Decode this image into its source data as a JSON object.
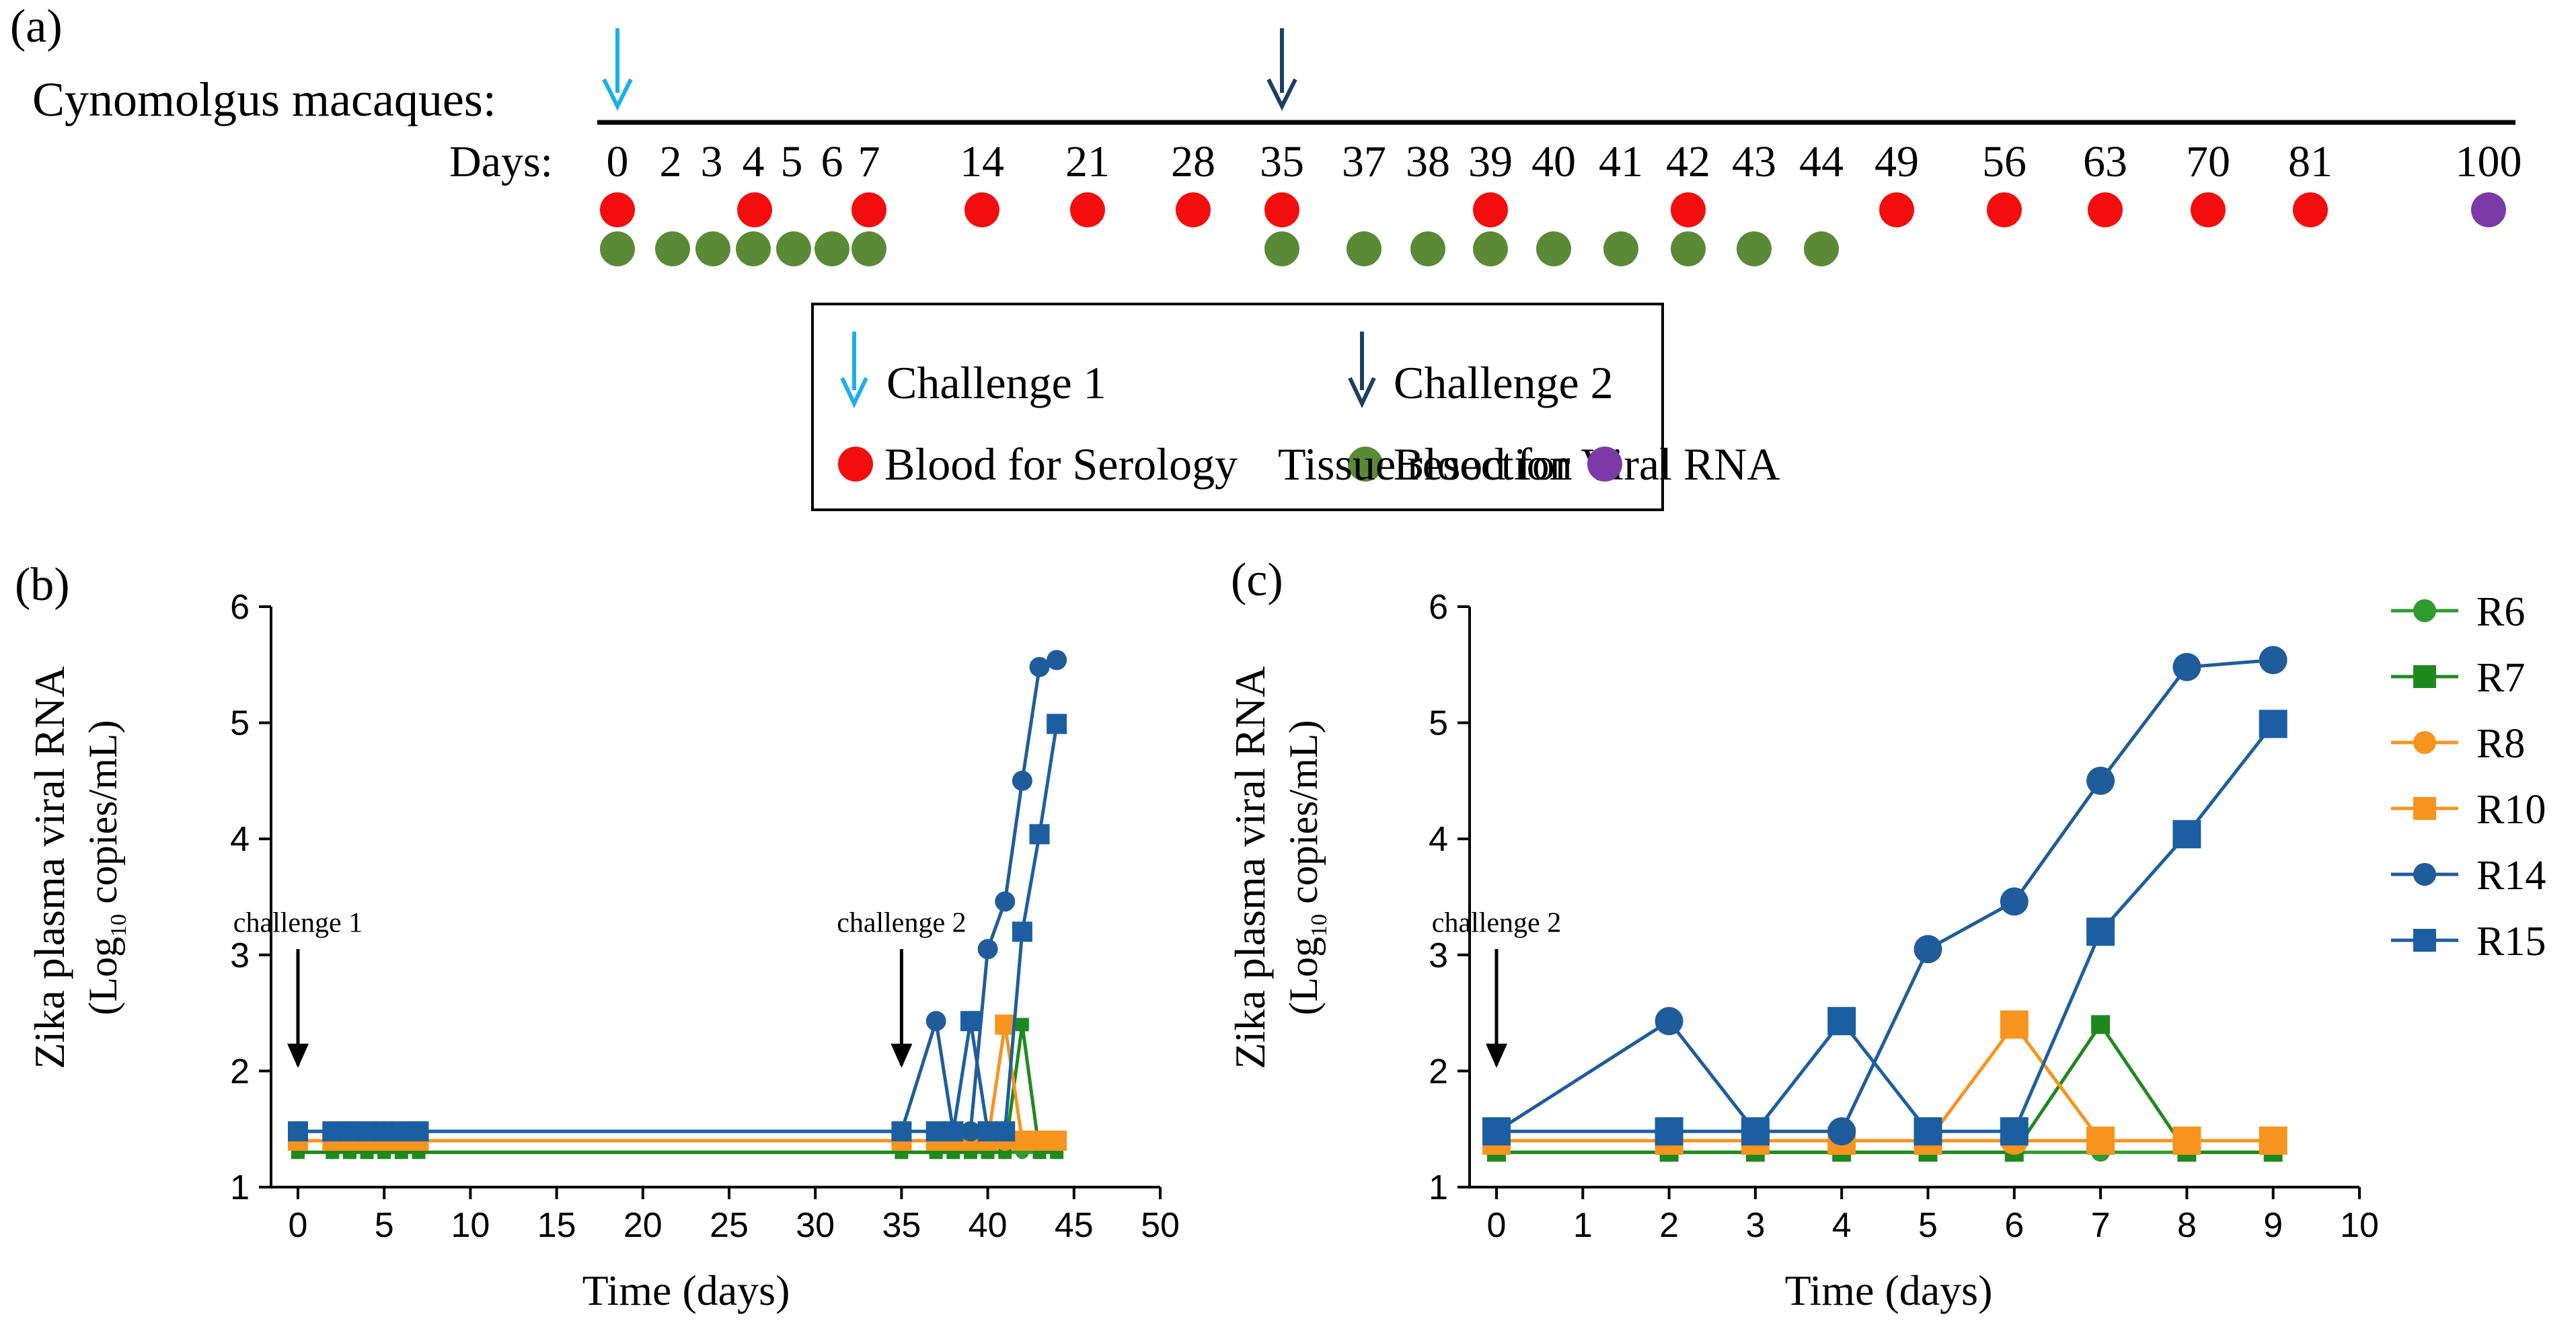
{
  "panel_labels": {
    "a": "(a)",
    "b": "(b)",
    "c": "(c)"
  },
  "timeline": {
    "subject_label": "Cynomolgus macaques:",
    "days_label": "Days:",
    "days": [
      "0",
      "2",
      "3",
      "4",
      "5",
      "6",
      "7",
      "14",
      "21",
      "28",
      "35",
      "37",
      "38",
      "39",
      "40",
      "41",
      "42",
      "43",
      "44",
      "49",
      "56",
      "63",
      "70",
      "81",
      "100"
    ],
    "challenge_days": [
      {
        "day": "0",
        "challenge": "Challenge 1"
      },
      {
        "day": "35",
        "challenge": "Challenge 2"
      }
    ],
    "serology_days": [
      "0",
      "4",
      "7",
      "14",
      "21",
      "28",
      "35",
      "39",
      "42",
      "49",
      "56",
      "63",
      "70",
      "81"
    ],
    "viral_rna_days": [
      "0",
      "2",
      "3",
      "4",
      "5",
      "6",
      "7",
      "35",
      "37",
      "38",
      "39",
      "40",
      "41",
      "42",
      "43",
      "44"
    ],
    "tissue_days": [
      "100"
    ]
  },
  "legend_box": {
    "challenge1": "Challenge 1",
    "challenge2": "Challenge 2",
    "serology": "Blood for Serology",
    "viral_rna": "Blood for Viral RNA",
    "tissue": "Tissue resection"
  },
  "colors": {
    "challenge1": "#1ab0ea",
    "challenge2": "#1d3f66",
    "serology": "#f40d0d",
    "viral_rna": "#5b8a37",
    "tissue": "#7b3aa8",
    "R6": "#2e9b2e",
    "R7": "#1e8a1e",
    "R8": "#f7941d",
    "R10": "#f7941d",
    "R14": "#1f5c9c",
    "R15": "#1b5fa2"
  },
  "chart_data": [
    {
      "panel": "b",
      "type": "line",
      "title": "",
      "xlabel": "Time (days)",
      "ylabel_line1": "Zika plasma viral RNA",
      "ylabel_line2_pre": "(Log",
      "ylabel_sub": "10",
      "ylabel_line2_post": " copies/mL)",
      "xlim": [
        0,
        50
      ],
      "ylim": [
        1,
        6
      ],
      "xticks": [
        0,
        5,
        10,
        15,
        20,
        25,
        30,
        35,
        40,
        45,
        50
      ],
      "yticks": [
        1,
        2,
        3,
        4,
        5,
        6
      ],
      "annotations": [
        {
          "text": "challenge 1",
          "x": 0
        },
        {
          "text": "challenge 2",
          "x": 35
        }
      ],
      "series": [
        {
          "name": "R6",
          "marker": "circle",
          "x": [
            0,
            2,
            3,
            4,
            5,
            6,
            7,
            35,
            37,
            38,
            39,
            40,
            41,
            42,
            43,
            44
          ],
          "y": [
            1.3,
            1.3,
            1.3,
            1.3,
            1.3,
            1.3,
            1.3,
            1.3,
            1.3,
            1.3,
            1.3,
            1.3,
            1.3,
            1.3,
            1.3,
            1.3
          ]
        },
        {
          "name": "R7",
          "marker": "square",
          "x": [
            0,
            2,
            3,
            4,
            5,
            6,
            7,
            35,
            37,
            38,
            39,
            40,
            41,
            42,
            43,
            44
          ],
          "y": [
            1.3,
            1.3,
            1.3,
            1.3,
            1.3,
            1.3,
            1.3,
            1.3,
            1.3,
            1.3,
            1.3,
            1.3,
            1.3,
            2.4,
            1.3,
            1.3
          ]
        },
        {
          "name": "R8",
          "marker": "circle",
          "x": [
            0,
            2,
            3,
            4,
            5,
            6,
            7,
            35,
            37,
            38,
            39,
            40,
            41,
            42,
            43,
            44
          ],
          "y": [
            1.4,
            1.4,
            1.4,
            1.4,
            1.4,
            1.4,
            1.4,
            1.4,
            1.4,
            1.4,
            1.4,
            1.4,
            1.4,
            1.4,
            1.4,
            1.4
          ]
        },
        {
          "name": "R10",
          "marker": "square",
          "x": [
            0,
            2,
            3,
            4,
            5,
            6,
            7,
            35,
            37,
            38,
            39,
            40,
            41,
            42,
            43,
            44
          ],
          "y": [
            1.4,
            1.4,
            1.4,
            1.4,
            1.4,
            1.4,
            1.4,
            1.4,
            1.4,
            1.4,
            1.4,
            1.4,
            2.4,
            1.4,
            1.4,
            1.4
          ]
        },
        {
          "name": "R14",
          "marker": "circle",
          "x": [
            0,
            2,
            3,
            4,
            5,
            6,
            7,
            35,
            37,
            38,
            39,
            40,
            41,
            42,
            43,
            44
          ],
          "y": [
            1.48,
            1.48,
            1.48,
            1.48,
            1.48,
            1.48,
            1.48,
            1.48,
            2.43,
            1.48,
            1.48,
            3.05,
            3.46,
            4.5,
            5.48,
            5.54
          ]
        },
        {
          "name": "R15",
          "marker": "square",
          "x": [
            0,
            2,
            3,
            4,
            5,
            6,
            7,
            35,
            37,
            38,
            39,
            40,
            41,
            42,
            43,
            44
          ],
          "y": [
            1.48,
            1.48,
            1.48,
            1.48,
            1.48,
            1.48,
            1.48,
            1.48,
            1.48,
            1.48,
            2.43,
            1.48,
            1.48,
            3.2,
            4.04,
            4.99
          ]
        }
      ]
    },
    {
      "panel": "c",
      "type": "line",
      "title": "",
      "xlabel": "Time (days)",
      "ylabel_line1": "Zika plasma viral RNA",
      "ylabel_line2_pre": "(Log",
      "ylabel_sub": "10",
      "ylabel_line2_post": " copies/mL)",
      "xlim": [
        0,
        10
      ],
      "ylim": [
        1,
        6
      ],
      "xticks": [
        0,
        1,
        2,
        3,
        4,
        5,
        6,
        7,
        8,
        9,
        10
      ],
      "yticks": [
        1,
        2,
        3,
        4,
        5,
        6
      ],
      "annotations": [
        {
          "text": "challenge 2",
          "x": 0
        }
      ],
      "series": [
        {
          "name": "R6",
          "marker": "circle",
          "x": [
            0,
            2,
            3,
            4,
            5,
            6,
            7,
            8,
            9
          ],
          "y": [
            1.3,
            1.3,
            1.3,
            1.3,
            1.3,
            1.3,
            1.3,
            1.3,
            1.3
          ]
        },
        {
          "name": "R7",
          "marker": "square",
          "x": [
            0,
            2,
            3,
            4,
            5,
            6,
            7,
            8,
            9
          ],
          "y": [
            1.3,
            1.3,
            1.3,
            1.3,
            1.3,
            1.3,
            2.4,
            1.3,
            1.3
          ]
        },
        {
          "name": "R8",
          "marker": "circle",
          "x": [
            0,
            2,
            3,
            4,
            5,
            6,
            7,
            8,
            9
          ],
          "y": [
            1.4,
            1.4,
            1.4,
            1.4,
            1.4,
            1.4,
            1.4,
            1.4,
            1.4
          ]
        },
        {
          "name": "R10",
          "marker": "square",
          "x": [
            0,
            2,
            3,
            4,
            5,
            6,
            7,
            8,
            9
          ],
          "y": [
            1.4,
            1.4,
            1.4,
            1.4,
            1.4,
            2.4,
            1.4,
            1.4,
            1.4
          ]
        },
        {
          "name": "R14",
          "marker": "circle",
          "x": [
            0,
            2,
            3,
            4,
            5,
            6,
            7,
            8,
            9
          ],
          "y": [
            1.48,
            2.43,
            1.48,
            1.48,
            3.05,
            3.46,
            4.5,
            5.48,
            5.54
          ]
        },
        {
          "name": "R15",
          "marker": "square",
          "x": [
            0,
            2,
            3,
            4,
            5,
            6,
            7,
            8,
            9
          ],
          "y": [
            1.48,
            1.48,
            1.48,
            2.43,
            1.48,
            1.48,
            3.2,
            4.04,
            4.99
          ]
        }
      ]
    }
  ],
  "series_legend": [
    {
      "name": "R6",
      "marker": "circle"
    },
    {
      "name": "R7",
      "marker": "square"
    },
    {
      "name": "R8",
      "marker": "circle"
    },
    {
      "name": "R10",
      "marker": "square"
    },
    {
      "name": "R14",
      "marker": "circle"
    },
    {
      "name": "R15",
      "marker": "square"
    }
  ]
}
